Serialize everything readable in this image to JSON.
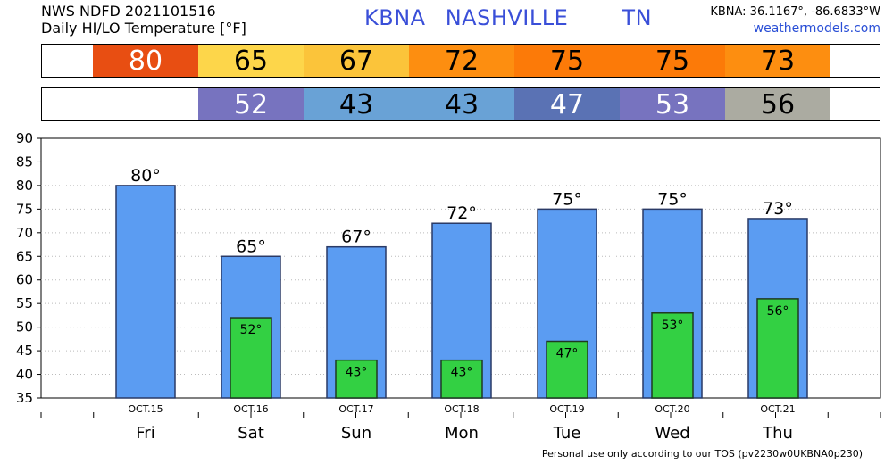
{
  "header": {
    "line1": "NWS NDFD 2021101516",
    "line2": "Daily HI/LO Temperature [°F]",
    "station": "KBNA",
    "city": "NASHVILLE",
    "state": "TN",
    "coords": "KBNA: 36.1167°, -86.6833°W",
    "site": "weathermodels.com"
  },
  "footer": "Personal use only according to our TOS (pv2230w0UKBNA0p230)",
  "colors": {
    "hi_bar": "#5b9cf2",
    "lo_bar": "#33d043",
    "tile_80": "#e84e12",
    "tile_65": "#fdd64a",
    "tile_67": "#fbc43a",
    "tile_72": "#fd8e10",
    "tile_75": "#fc7a08",
    "tile_73": "#fd8e10",
    "tile_52": "#7773bf",
    "tile_43": "#69a2d6",
    "tile_47": "#5a72b4",
    "tile_53": "#7773bf",
    "tile_56": "#ababa1"
  },
  "chart_data": {
    "type": "bar",
    "title": "Daily HI/LO Temperature [°F]",
    "categories": [
      "Fri",
      "Sat",
      "Sun",
      "Mon",
      "Tue",
      "Wed",
      "Thu"
    ],
    "dates": [
      "OCT.15",
      "OCT.16",
      "OCT.17",
      "OCT.18",
      "OCT.19",
      "OCT.20",
      "OCT.21"
    ],
    "series": [
      {
        "values": [
          80,
          65,
          67,
          72,
          75,
          75,
          73
        ]
      },
      {
        "values": [
          null,
          52,
          43,
          43,
          47,
          53,
          56
        ]
      }
    ],
    "hi_labels": [
      "80°",
      "65°",
      "67°",
      "72°",
      "75°",
      "75°",
      "73°"
    ],
    "lo_labels": [
      "",
      "52°",
      "43°",
      "43°",
      "47°",
      "53°",
      "56°"
    ],
    "yticks": [
      "90",
      "85",
      "80",
      "75",
      "70",
      "65",
      "60",
      "55",
      "50",
      "45",
      "40",
      "35"
    ],
    "ylim": [
      35,
      90
    ],
    "grid": true,
    "hi_tiles": [
      {
        "text": "80",
        "color": "#e84e12",
        "text_color": "#ffffff"
      },
      {
        "text": "65",
        "color": "#fdd64a",
        "text_color": "#000000"
      },
      {
        "text": "67",
        "color": "#fbc43a",
        "text_color": "#000000"
      },
      {
        "text": "72",
        "color": "#fd8e10",
        "text_color": "#000000"
      },
      {
        "text": "75",
        "color": "#fc7a08",
        "text_color": "#000000"
      },
      {
        "text": "75",
        "color": "#fc7a08",
        "text_color": "#000000"
      },
      {
        "text": "73",
        "color": "#fd8e10",
        "text_color": "#000000"
      }
    ],
    "lo_tiles": [
      {
        "text": "52",
        "color": "#7773bf",
        "text_color": "#ffffff"
      },
      {
        "text": "43",
        "color": "#69a2d6",
        "text_color": "#000000"
      },
      {
        "text": "43",
        "color": "#69a2d6",
        "text_color": "#000000"
      },
      {
        "text": "47",
        "color": "#5a72b4",
        "text_color": "#ffffff"
      },
      {
        "text": "53",
        "color": "#7773bf",
        "text_color": "#ffffff"
      },
      {
        "text": "56",
        "color": "#ababa1",
        "text_color": "#000000"
      }
    ]
  }
}
